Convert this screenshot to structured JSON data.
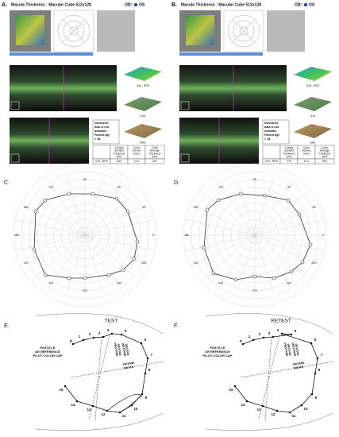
{
  "oct_panels": [
    {
      "label": "A.",
      "title": "Macula Thickness : Macular Cube 512x128",
      "eyes": [
        "OD",
        "OS"
      ],
      "layers": [
        "ILM - RPE",
        "ILM",
        "RPE"
      ],
      "note": [
        "Normative",
        "data is not",
        "available.",
        "Patient age",
        "< 18."
      ],
      "table": {
        "headers": [
          [
            "Central",
            "Subfield",
            "Thickness",
            "(µm)"
          ],
          [
            "Cube",
            "Volume",
            "(mm³)"
          ],
          [
            "Cube",
            "Average",
            "Thickness",
            "(µm)"
          ]
        ],
        "row": [
          "ILM - RPE",
          "264",
          "11.1",
          "307"
        ]
      }
    },
    {
      "label": "B.",
      "title": "Macula Thickness : Macular Cube 512x128",
      "eyes": [
        "OD",
        "OS"
      ],
      "layers": [
        "ILM - RPE",
        "ILM",
        "RPE"
      ],
      "note": [
        "Normative",
        "data is not",
        "available.",
        "Patient age",
        "< 18."
      ],
      "table": {
        "headers": [
          [
            "Central",
            "Subfield",
            "Thickness",
            "(µm)"
          ],
          [
            "Cube",
            "Volume",
            "(mm³)"
          ],
          [
            "Cube",
            "Average",
            "Thickness",
            "(µm)"
          ]
        ],
        "row": [
          "ILM - RPE",
          "279",
          "11.0",
          "306"
        ]
      }
    }
  ],
  "field_panels": [
    {
      "label": "C."
    },
    {
      "label": "D."
    }
  ],
  "field_angles": [
    "0",
    "30",
    "60",
    "90",
    "120",
    "150",
    "180",
    "210",
    "240",
    "270",
    "300",
    "330"
  ],
  "cap_panels": [
    {
      "label": "E.",
      "title": "TEST"
    },
    {
      "label": "F.",
      "title": "RETEST"
    }
  ],
  "cap_texts": {
    "reference": [
      "PASTILLE",
      "DE RÉFÉRENCE",
      "PILOT COLOR CAP"
    ],
    "pilot": "P",
    "caps": [
      "1",
      "2",
      "3",
      "4",
      "5",
      "6",
      "7",
      "8",
      "9",
      "10",
      "11",
      "12",
      "13",
      "14",
      "15"
    ],
    "protan": [
      "PROTANE",
      "PROTAN"
    ],
    "deutan": [
      "DEUTANE",
      "DEUTAN"
    ],
    "tritan": [
      "TRITANE",
      "TRITAN"
    ]
  }
}
